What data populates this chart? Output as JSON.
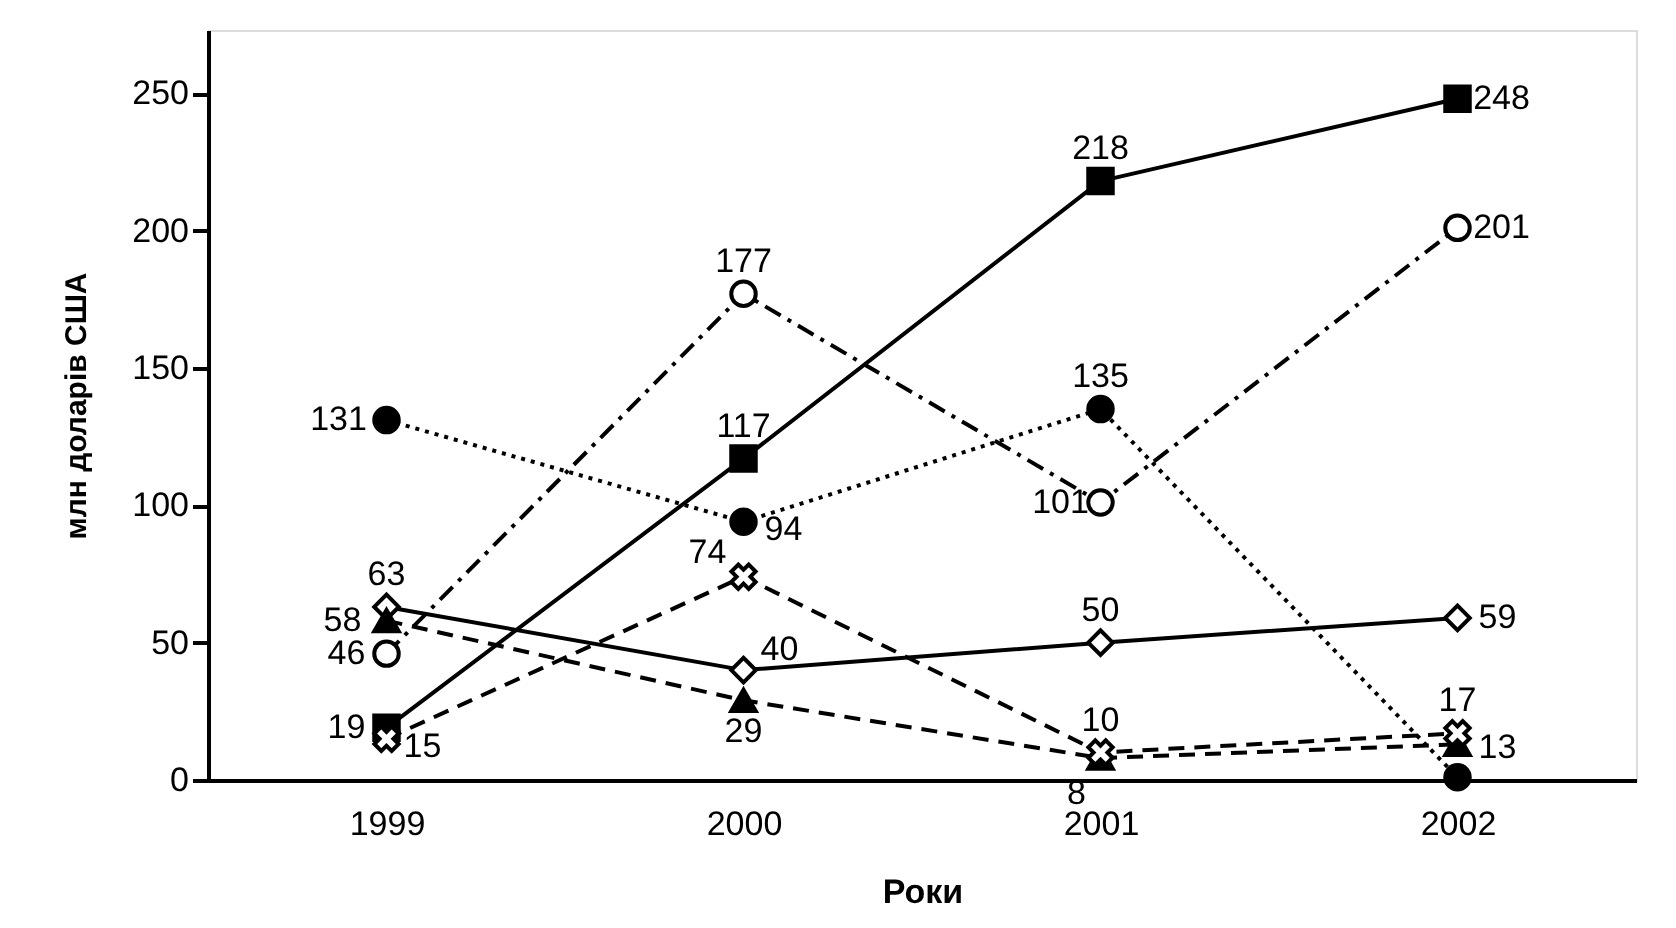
{
  "chart_data": {
    "type": "line",
    "xlabel": "Роки",
    "ylabel": "млн доларів США",
    "categories": [
      "1999",
      "2000",
      "2001",
      "2002"
    ],
    "ylim": [
      0,
      273
    ],
    "yticks": [
      0,
      50,
      100,
      150,
      200,
      250
    ],
    "grid": false,
    "series": [
      {
        "color": "#000000",
        "marker": "square",
        "line_style": "solid",
        "values": [
          19,
          117,
          218,
          248
        ],
        "value_labels": [
          "19",
          "117",
          "218",
          "248"
        ]
      },
      {
        "color": "#000000",
        "marker": "circle",
        "line_style": "dashdot",
        "values": [
          46,
          177,
          101,
          201
        ],
        "value_labels": [
          "46",
          "177",
          "101",
          "201"
        ]
      },
      {
        "color": "#000000",
        "marker": "circle",
        "line_style": "dotted",
        "values": [
          131,
          94,
          135,
          1
        ],
        "value_labels": [
          "131",
          "94",
          "135",
          null
        ]
      },
      {
        "color": "#000000",
        "marker": "diamond",
        "line_style": "solid",
        "values": [
          63,
          40,
          50,
          59
        ],
        "value_labels": [
          "63",
          "40",
          "50",
          "59"
        ]
      },
      {
        "color": "#000000",
        "marker": "triangle",
        "line_style": "dashed",
        "values": [
          58,
          29,
          8,
          13
        ],
        "value_labels": [
          "58",
          "29",
          "8",
          "13"
        ]
      },
      {
        "color": "#000000",
        "marker": "cross",
        "line_style": "dashed",
        "values": [
          15,
          74,
          10,
          17
        ],
        "value_labels": [
          "15",
          "74",
          "10",
          "17"
        ]
      }
    ]
  }
}
